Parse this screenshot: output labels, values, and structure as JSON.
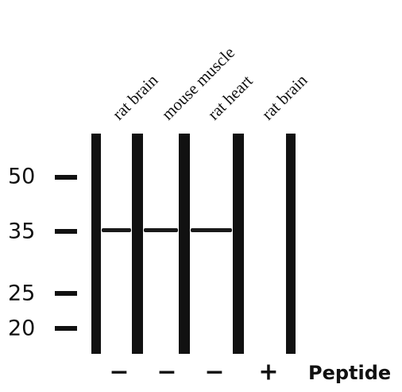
{
  "lanes": [
    {
      "label": "rat brain",
      "peptide": "−"
    },
    {
      "label": "mouse muscle",
      "peptide": "−"
    },
    {
      "label": "rat heart",
      "peptide": "−"
    },
    {
      "label": "rat brain",
      "peptide": "+"
    }
  ],
  "markers": [
    "50",
    "35",
    "25",
    "20"
  ],
  "peptide_label": "Peptide"
}
